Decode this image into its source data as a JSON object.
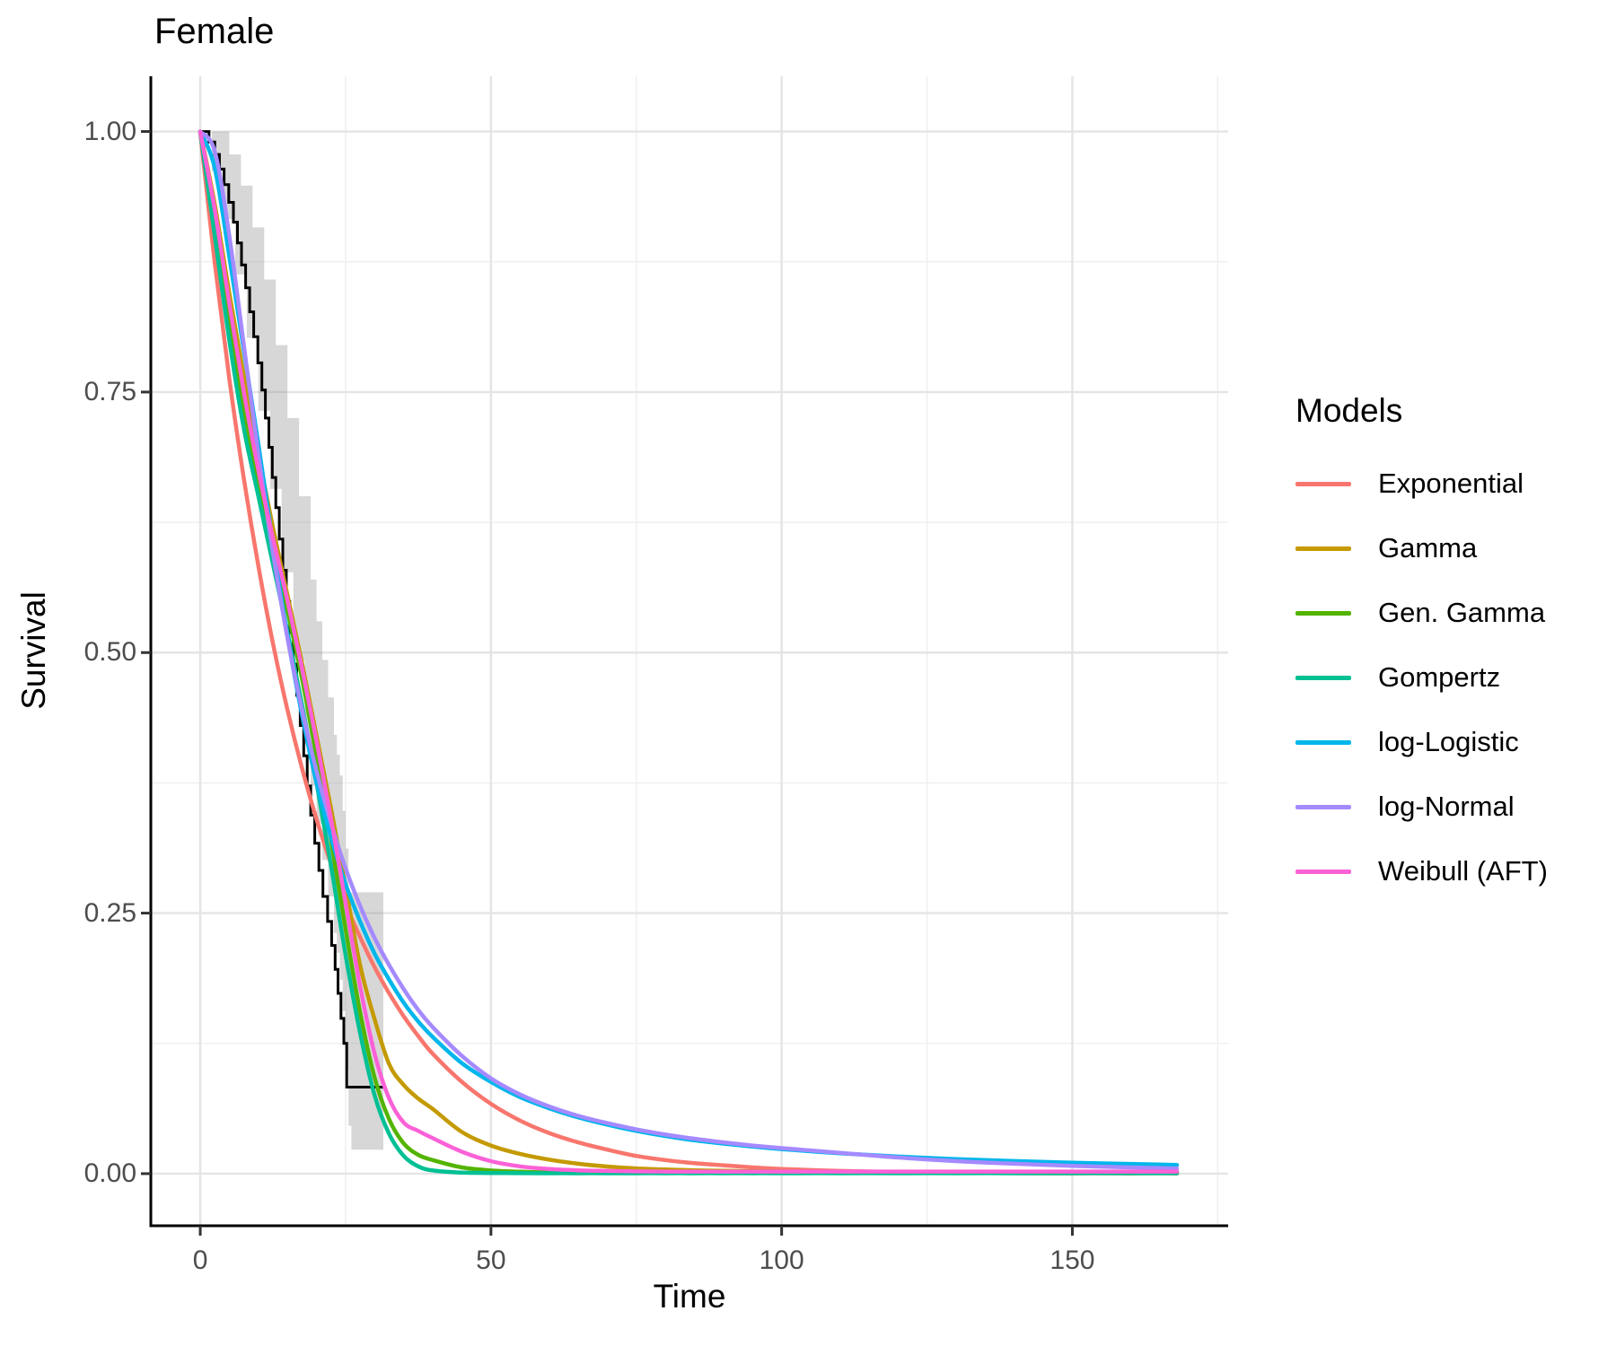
{
  "title": "Female",
  "axes": {
    "x": {
      "label": "Time",
      "tick_labels": [
        "0",
        "50",
        "100",
        "150"
      ],
      "tick_values": [
        0,
        50,
        100,
        150
      ],
      "minor_values": [
        25,
        75,
        125,
        175
      ],
      "limits": [
        -8.5,
        176.8
      ]
    },
    "y": {
      "label": "Survival",
      "tick_labels": [
        "0.00",
        "0.25",
        "0.50",
        "0.75",
        "1.00"
      ],
      "tick_values": [
        0,
        0.25,
        0.5,
        0.75,
        1.0
      ],
      "minor_values": [
        0.125,
        0.375,
        0.625,
        0.875
      ],
      "limits": [
        -0.05,
        1.053
      ]
    }
  },
  "legend": {
    "title": "Models",
    "entries": [
      {
        "label": "Exponential",
        "color": "#F8766D"
      },
      {
        "label": "Gamma",
        "color": "#C49A00"
      },
      {
        "label": "Gen. Gamma",
        "color": "#53B400"
      },
      {
        "label": "Gompertz",
        "color": "#00C094"
      },
      {
        "label": "log-Logistic",
        "color": "#00B6EB"
      },
      {
        "label": "log-Normal",
        "color": "#A58AFF"
      },
      {
        "label": "Weibull (AFT)",
        "color": "#FB61D7"
      }
    ]
  },
  "style": {
    "background": "#FFFFFF",
    "axis_line_color": "#000000",
    "tick_mark_color": "#333333",
    "tick_label_color": "#4D4D4D",
    "grid_major_color": "#E4E4E4",
    "grid_minor_color": "#F0F0F0",
    "km_color": "#000000",
    "ribbon_fill": "rgba(150,150,150,0.38)"
  },
  "chart_data": {
    "type": "line",
    "title": "Female",
    "xlabel": "Time",
    "ylabel": "Survival",
    "xlim": [
      -8.5,
      176.8
    ],
    "ylim": [
      -0.05,
      1.053
    ],
    "grid": "major+minor",
    "legend_position": "right",
    "kaplan_meier": {
      "name": "KM estimate (step)",
      "color": "#000000",
      "steps": [
        [
          0,
          1.0
        ],
        [
          1.5,
          0.99
        ],
        [
          2.5,
          0.978
        ],
        [
          3.3,
          0.964
        ],
        [
          4.1,
          0.949
        ],
        [
          4.9,
          0.932
        ],
        [
          5.7,
          0.913
        ],
        [
          6.4,
          0.893
        ],
        [
          7.1,
          0.872
        ],
        [
          7.8,
          0.85
        ],
        [
          8.5,
          0.827
        ],
        [
          9.2,
          0.803
        ],
        [
          9.9,
          0.778
        ],
        [
          10.6,
          0.752
        ],
        [
          11.2,
          0.725
        ],
        [
          11.8,
          0.697
        ],
        [
          12.4,
          0.668
        ],
        [
          13.0,
          0.639
        ],
        [
          13.6,
          0.609
        ],
        [
          14.2,
          0.579
        ],
        [
          14.8,
          0.549
        ],
        [
          15.4,
          0.519
        ],
        [
          16.0,
          0.489
        ],
        [
          16.6,
          0.459
        ],
        [
          17.2,
          0.43
        ],
        [
          17.8,
          0.401
        ],
        [
          18.4,
          0.372
        ],
        [
          19.0,
          0.344
        ],
        [
          19.7,
          0.317
        ],
        [
          20.4,
          0.291
        ],
        [
          21.1,
          0.266
        ],
        [
          21.9,
          0.242
        ],
        [
          22.6,
          0.219
        ],
        [
          23.2,
          0.196
        ],
        [
          23.7,
          0.173
        ],
        [
          24.2,
          0.149
        ],
        [
          24.7,
          0.125
        ],
        [
          25.2,
          0.083
        ],
        [
          31.5,
          0.083
        ]
      ],
      "ci_upper": [
        [
          0,
          1.0
        ],
        [
          3,
          1.0
        ],
        [
          5,
          0.978
        ],
        [
          7,
          0.948
        ],
        [
          9,
          0.908
        ],
        [
          11,
          0.858
        ],
        [
          13,
          0.795
        ],
        [
          15,
          0.725
        ],
        [
          17,
          0.65
        ],
        [
          19,
          0.57
        ],
        [
          20,
          0.53
        ],
        [
          21,
          0.493
        ],
        [
          22,
          0.457
        ],
        [
          23,
          0.421
        ],
        [
          23.5,
          0.402
        ],
        [
          24,
          0.382
        ],
        [
          24.5,
          0.348
        ],
        [
          25,
          0.312
        ],
        [
          25.5,
          0.27
        ],
        [
          31.5,
          0.27
        ]
      ],
      "ci_lower": [
        [
          0,
          1.0
        ],
        [
          2,
          0.962
        ],
        [
          4,
          0.916
        ],
        [
          6,
          0.863
        ],
        [
          8,
          0.802
        ],
        [
          10,
          0.732
        ],
        [
          12,
          0.657
        ],
        [
          14,
          0.577
        ],
        [
          16,
          0.492
        ],
        [
          18,
          0.412
        ],
        [
          19,
          0.372
        ],
        [
          20,
          0.336
        ],
        [
          21,
          0.301
        ],
        [
          22,
          0.266
        ],
        [
          23,
          0.231
        ],
        [
          23.5,
          0.212
        ],
        [
          24,
          0.186
        ],
        [
          24.5,
          0.156
        ],
        [
          25,
          0.1
        ],
        [
          25.5,
          0.046
        ],
        [
          26,
          0.023
        ],
        [
          31.5,
          0.02
        ]
      ]
    },
    "x": [
      0,
      2.5,
      5,
      7.5,
      10,
      12.5,
      15,
      17.5,
      20,
      22.5,
      25,
      27.5,
      30,
      32.5,
      35,
      37.5,
      40,
      45,
      50,
      55,
      60,
      65,
      70,
      75,
      80,
      85,
      90,
      95,
      100,
      110,
      120,
      130,
      140,
      150,
      160,
      168
    ],
    "series": [
      {
        "name": "Exponential",
        "color": "#F8766D",
        "values": [
          1,
          0.874,
          0.763,
          0.667,
          0.583,
          0.509,
          0.445,
          0.389,
          0.34,
          0.297,
          0.259,
          0.227,
          0.198,
          0.173,
          0.151,
          0.132,
          0.115,
          0.088,
          0.067,
          0.051,
          0.039,
          0.03,
          0.023,
          0.017,
          0.013,
          0.01,
          0.008,
          0.006,
          0.0045,
          0.0026,
          0.0015,
          0.0009,
          0.0005,
          0.0003,
          0.0002,
          0.0002
        ]
      },
      {
        "name": "Gamma",
        "color": "#C49A00",
        "values": [
          1,
          0.93,
          0.845,
          0.765,
          0.69,
          0.62,
          0.555,
          0.49,
          0.42,
          0.35,
          0.275,
          0.2,
          0.148,
          0.105,
          0.085,
          0.072,
          0.062,
          0.04,
          0.027,
          0.019,
          0.0135,
          0.0095,
          0.0068,
          0.005,
          0.004,
          0.0032,
          0.0027,
          0.0023,
          0.002,
          0.0017,
          0.0015,
          0.0015,
          0.0015,
          0.0015,
          0.0015,
          0.0015
        ]
      },
      {
        "name": "Gen. Gamma",
        "color": "#53B400",
        "values": [
          1,
          0.915,
          0.82,
          0.735,
          0.665,
          0.6,
          0.54,
          0.475,
          0.4,
          0.32,
          0.235,
          0.155,
          0.092,
          0.052,
          0.029,
          0.018,
          0.013,
          0.006,
          0.003,
          0.0018,
          0.0012,
          0.001,
          0.0009,
          0.0008,
          0.0008,
          0.0007,
          0.0007,
          0.0007,
          0.0007,
          0.0006,
          0.0006,
          0.0006,
          0.0006,
          0.0006,
          0.0006,
          0.0006
        ]
      },
      {
        "name": "Gompertz",
        "color": "#00C094",
        "values": [
          1,
          0.9,
          0.8,
          0.715,
          0.65,
          0.585,
          0.52,
          0.45,
          0.375,
          0.295,
          0.21,
          0.135,
          0.075,
          0.038,
          0.017,
          0.007,
          0.003,
          0.001,
          0.0006,
          0.0005,
          0.0004,
          0.0004,
          0.0004,
          0.0004,
          0.0004,
          0.0004,
          0.0004,
          0.0004,
          0.0004,
          0.0004,
          0.0004,
          0.0004,
          0.0004,
          0.0004,
          0.0004,
          0.0004
        ]
      },
      {
        "name": "log-Logistic",
        "color": "#00B6EB",
        "values": [
          1,
          0.965,
          0.88,
          0.79,
          0.7,
          0.605,
          0.516,
          0.44,
          0.375,
          0.322,
          0.278,
          0.242,
          0.211,
          0.186,
          0.164,
          0.146,
          0.131,
          0.106,
          0.088,
          0.0735,
          0.0627,
          0.054,
          0.047,
          0.041,
          0.0361,
          0.032,
          0.0288,
          0.026,
          0.0235,
          0.0195,
          0.0164,
          0.014,
          0.0121,
          0.0105,
          0.0093,
          0.0084
        ]
      },
      {
        "name": "log-Normal",
        "color": "#A58AFF",
        "values": [
          1,
          0.981,
          0.9,
          0.795,
          0.69,
          0.596,
          0.514,
          0.445,
          0.386,
          0.336,
          0.293,
          0.257,
          0.226,
          0.2,
          0.177,
          0.157,
          0.1405,
          0.113,
          0.0915,
          0.076,
          0.0645,
          0.0555,
          0.0485,
          0.0425,
          0.0375,
          0.0335,
          0.03,
          0.027,
          0.0245,
          0.02,
          0.0155,
          0.012,
          0.0095,
          0.0075,
          0.006,
          0.005
        ]
      },
      {
        "name": "Weibull (AFT)",
        "color": "#FB61D7",
        "values": [
          1,
          0.925,
          0.835,
          0.75,
          0.675,
          0.61,
          0.55,
          0.485,
          0.415,
          0.34,
          0.26,
          0.18,
          0.115,
          0.072,
          0.049,
          0.041,
          0.034,
          0.021,
          0.012,
          0.007,
          0.0045,
          0.0032,
          0.0026,
          0.0022,
          0.002,
          0.002,
          0.002,
          0.002,
          0.002,
          0.002,
          0.002,
          0.002,
          0.002,
          0.002,
          0.002,
          0.002
        ]
      }
    ]
  }
}
